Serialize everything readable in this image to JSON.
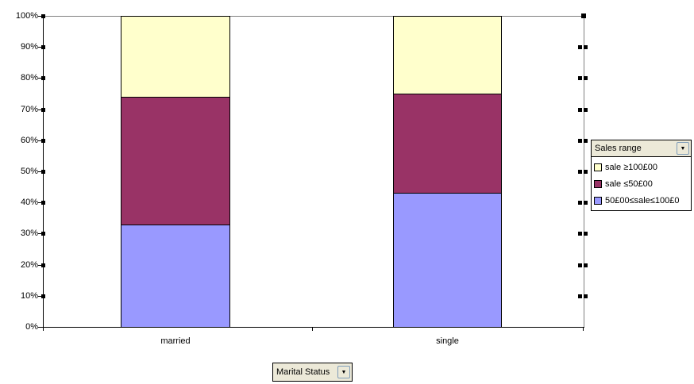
{
  "chart_data": {
    "type": "bar",
    "subtype": "100-percent-stacked-column",
    "title": "",
    "categories": [
      "married",
      "single"
    ],
    "series": [
      {
        "name": "50£00≤sale≤100£0",
        "color": "#9999FF",
        "values": [
          33,
          43
        ]
      },
      {
        "name": "sale ≤50£00",
        "color": "#993366",
        "values": [
          41,
          32
        ]
      },
      {
        "name": "sale ≥100£00",
        "color": "#FFFFCC",
        "values": [
          26,
          25
        ]
      }
    ],
    "y_axis": {
      "min": 0,
      "max": 100,
      "ticks": [
        "0%",
        "10%",
        "20%",
        "30%",
        "40%",
        "50%",
        "60%",
        "70%",
        "80%",
        "90%",
        "100%"
      ]
    },
    "legend": {
      "position": "right",
      "title": "Sales range",
      "items": [
        {
          "label": "sale ≥100£00",
          "color": "#FFFFCC"
        },
        {
          "label": "sale ≤50£00",
          "color": "#993366"
        },
        {
          "label": "50£00≤sale≤100£0",
          "color": "#9999FF"
        }
      ]
    },
    "grid": false,
    "plot_background": "#FFFFFF"
  },
  "field_buttons": {
    "series_field": "Sales range",
    "category_field": "Marital Status"
  },
  "icons": {
    "dropdown_arrow": "▼"
  },
  "colors": {
    "plot_border_gray": "#808080",
    "axis_black": "#000000",
    "button_face": "#ECE9D8"
  }
}
